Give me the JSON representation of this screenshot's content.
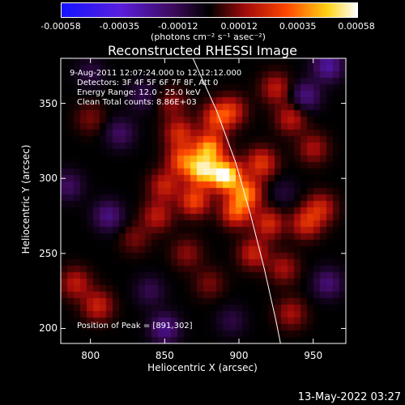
{
  "colorbar": {
    "tick_labels": [
      "-0.00058",
      "-0.00035",
      "-0.00012",
      "0.00012",
      "0.00035",
      "0.00058"
    ],
    "tick_values": [
      -0.00058,
      -0.00035,
      -0.00012,
      0.00012,
      0.00035,
      0.00058
    ],
    "units_text": "(photons cm⁻² s⁻¹ asec⁻²)",
    "range": [
      -0.00058,
      0.00058
    ],
    "colormap": "blue-purple-black-red-orange-yellow-white"
  },
  "chart_data": {
    "type": "heatmap",
    "title": "Reconstructed RHESSI Image",
    "xlabel": "Heliocentric X (arcsec)",
    "ylabel": "Heliocentric Y (arcsec)",
    "xlim": [
      780,
      972
    ],
    "ylim": [
      190,
      380
    ],
    "x_ticks": [
      "800",
      "850",
      "900",
      "950"
    ],
    "x_tick_values": [
      800,
      850,
      900,
      950
    ],
    "y_ticks": [
      "200",
      "250",
      "300",
      "350"
    ],
    "y_tick_values": [
      200,
      250,
      300,
      350
    ],
    "annotations": {
      "time_range": "9-Aug-2011 12:07:24.000 to 12:12:12.000",
      "detectors": "Detectors: 3F 4F 5F 6F 7F 8F, Att 0",
      "energy": "Energy Range: 12.0 - 25.0 keV",
      "clean": "Clean     Total counts: 8.86E+03",
      "peak": "Position of Peak = [891,302]"
    },
    "peak_position": [
      891,
      302
    ],
    "limb_line": [
      [
        869,
        380
      ],
      [
        885,
        345
      ],
      [
        898,
        310
      ],
      [
        908,
        275
      ],
      [
        917,
        240
      ],
      [
        925,
        205
      ],
      [
        928,
        190
      ]
    ],
    "features": [
      {
        "x": 891,
        "y": 302,
        "value": 0.00058
      },
      {
        "x": 875,
        "y": 305,
        "value": 0.00045
      },
      {
        "x": 880,
        "y": 320,
        "value": 0.0004
      },
      {
        "x": 905,
        "y": 290,
        "value": 0.00035
      },
      {
        "x": 862,
        "y": 312,
        "value": 0.0003
      },
      {
        "x": 898,
        "y": 278,
        "value": 0.0003
      },
      {
        "x": 870,
        "y": 285,
        "value": 0.00028
      },
      {
        "x": 915,
        "y": 310,
        "value": 0.00025
      },
      {
        "x": 885,
        "y": 340,
        "value": 0.00025
      },
      {
        "x": 860,
        "y": 330,
        "value": 0.00022
      },
      {
        "x": 920,
        "y": 270,
        "value": 0.00022
      },
      {
        "x": 850,
        "y": 295,
        "value": 0.0002
      },
      {
        "x": 910,
        "y": 250,
        "value": 0.0002
      },
      {
        "x": 895,
        "y": 345,
        "value": 0.0002
      },
      {
        "x": 925,
        "y": 360,
        "value": 0.00018
      },
      {
        "x": 845,
        "y": 275,
        "value": 0.00018
      },
      {
        "x": 935,
        "y": 340,
        "value": 0.00018
      },
      {
        "x": 945,
        "y": 270,
        "value": 0.00022
      },
      {
        "x": 955,
        "y": 280,
        "value": 0.0002
      },
      {
        "x": 930,
        "y": 240,
        "value": 0.00015
      },
      {
        "x": 950,
        "y": 320,
        "value": 0.00015
      },
      {
        "x": 865,
        "y": 250,
        "value": 0.00012
      },
      {
        "x": 855,
        "y": 350,
        "value": 0.00012
      },
      {
        "x": 935,
        "y": 210,
        "value": 0.00015
      },
      {
        "x": 790,
        "y": 230,
        "value": 0.00018
      },
      {
        "x": 805,
        "y": 215,
        "value": 0.0002
      },
      {
        "x": 800,
        "y": 340,
        "value": 0.0001
      },
      {
        "x": 880,
        "y": 230,
        "value": 0.0001
      },
      {
        "x": 830,
        "y": 260,
        "value": 0.0001
      },
      {
        "x": 820,
        "y": 330,
        "value": -0.00015
      },
      {
        "x": 812,
        "y": 275,
        "value": -0.0002
      },
      {
        "x": 835,
        "y": 355,
        "value": -0.00012
      },
      {
        "x": 945,
        "y": 355,
        "value": -0.0002
      },
      {
        "x": 960,
        "y": 375,
        "value": -0.00025
      },
      {
        "x": 850,
        "y": 200,
        "value": -0.00022
      },
      {
        "x": 895,
        "y": 205,
        "value": -0.0001
      },
      {
        "x": 840,
        "y": 225,
        "value": -0.00012
      },
      {
        "x": 960,
        "y": 230,
        "value": -0.00018
      },
      {
        "x": 930,
        "y": 290,
        "value": -8e-05
      },
      {
        "x": 800,
        "y": 370,
        "value": -0.0001
      },
      {
        "x": 785,
        "y": 295,
        "value": -0.00015
      }
    ]
  },
  "date_stamp": "13-May-2022 03:27"
}
